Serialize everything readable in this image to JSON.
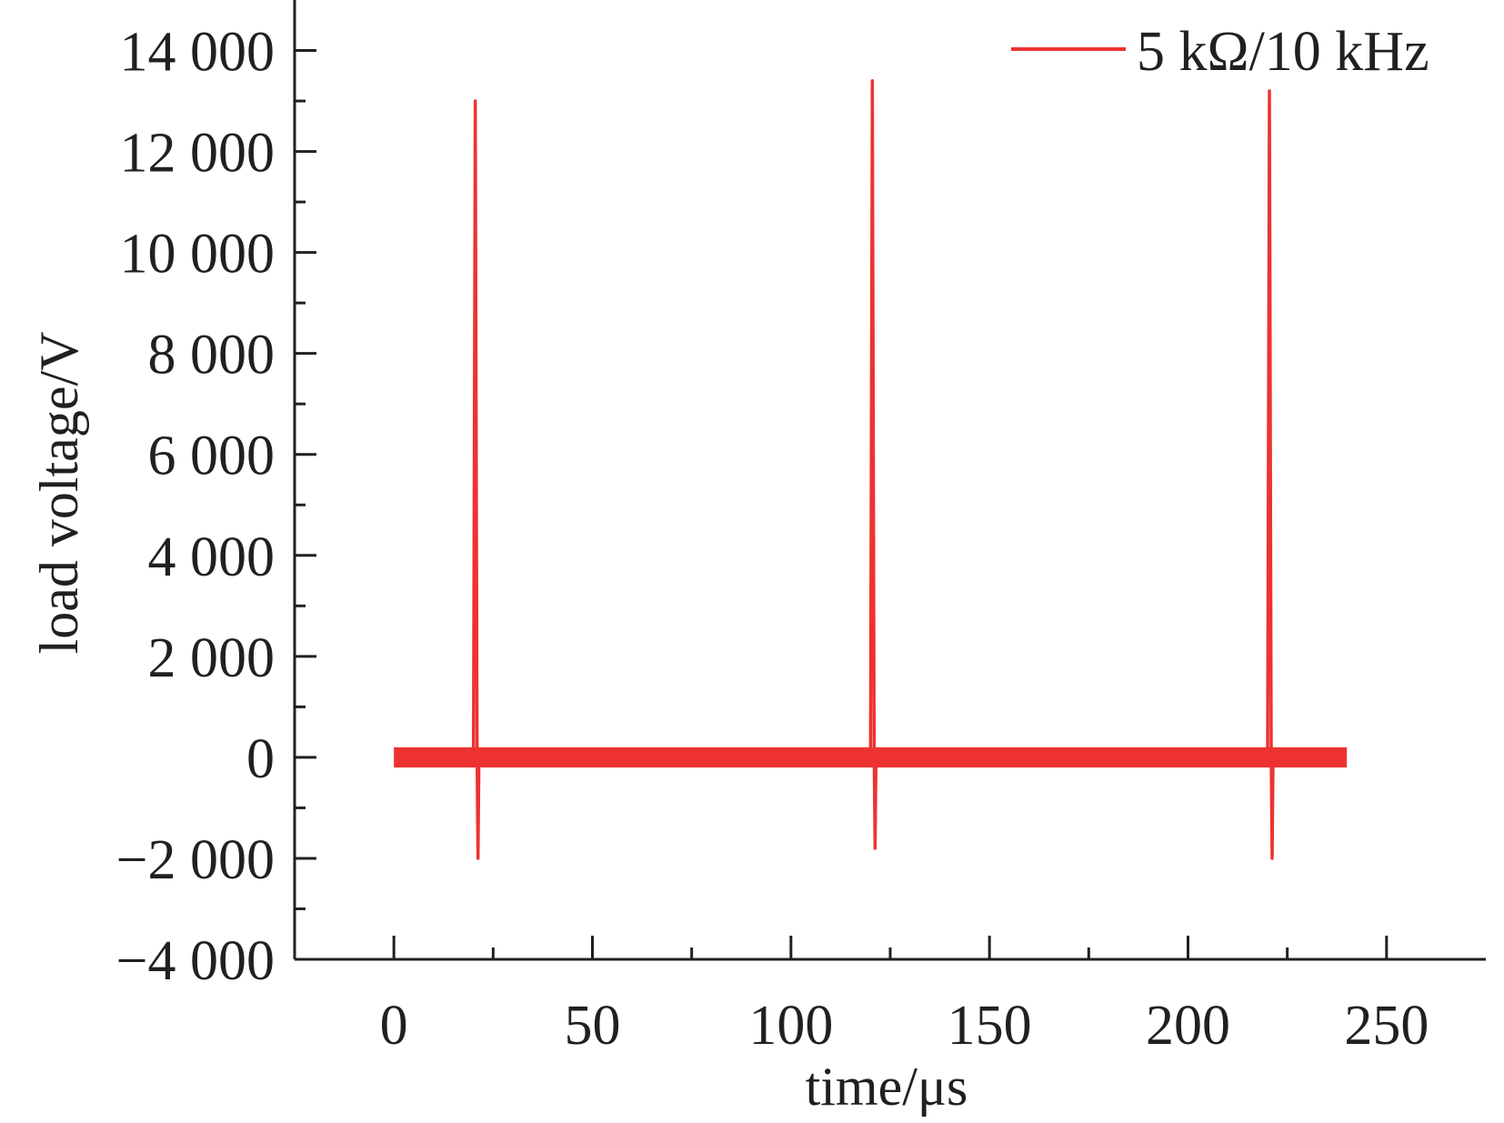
{
  "chart_data": {
    "type": "line",
    "title": "",
    "xlabel": "time/μs",
    "ylabel": "load voltage/V",
    "xlim": [
      -25,
      275
    ],
    "ylim": [
      -4000,
      15000
    ],
    "x_ticks": [
      0,
      50,
      100,
      150,
      200,
      250
    ],
    "x_tick_labels": [
      "0",
      "50",
      "100",
      "150",
      "200",
      "250"
    ],
    "y_ticks": [
      -4000,
      -2000,
      0,
      2000,
      4000,
      6000,
      8000,
      10000,
      12000,
      14000
    ],
    "y_tick_labels": [
      "−4 000",
      "−2 000",
      "0",
      "2 000",
      "4 000",
      "6 000",
      "8 000",
      "10 000",
      "12 000",
      "14 000"
    ],
    "grid": false,
    "legend": {
      "position": "top-right"
    },
    "series": [
      {
        "name": "5 kΩ/10 kHz",
        "color": "#ee3232",
        "baseline": {
          "x_start": 0,
          "x_end": 240,
          "y_min": -200,
          "y_max": 200
        },
        "pulses": [
          {
            "x": 20.5,
            "peak": 13000,
            "min": -2000
          },
          {
            "x": 120.5,
            "peak": 13400,
            "min": -1800
          },
          {
            "x": 220.5,
            "peak": 13200,
            "min": -2000
          }
        ]
      }
    ]
  }
}
